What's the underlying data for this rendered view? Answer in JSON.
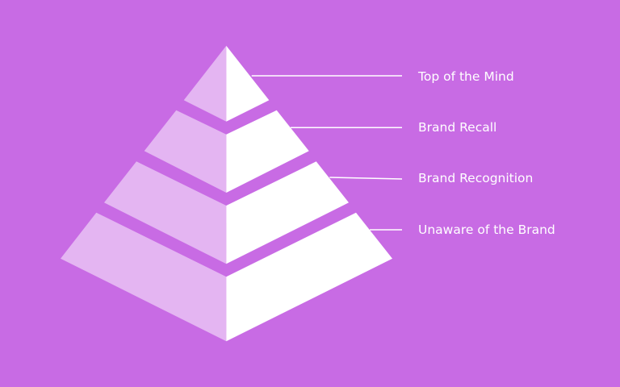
{
  "colors": {
    "background": "#c86be4",
    "left_face": "#e4b5f2",
    "right_face": "#ffffff"
  },
  "levels": [
    {
      "label": "Top of the Mind"
    },
    {
      "label": "Brand Recall"
    },
    {
      "label": "Brand Recognition"
    },
    {
      "label": "Unaware of the Brand"
    }
  ]
}
